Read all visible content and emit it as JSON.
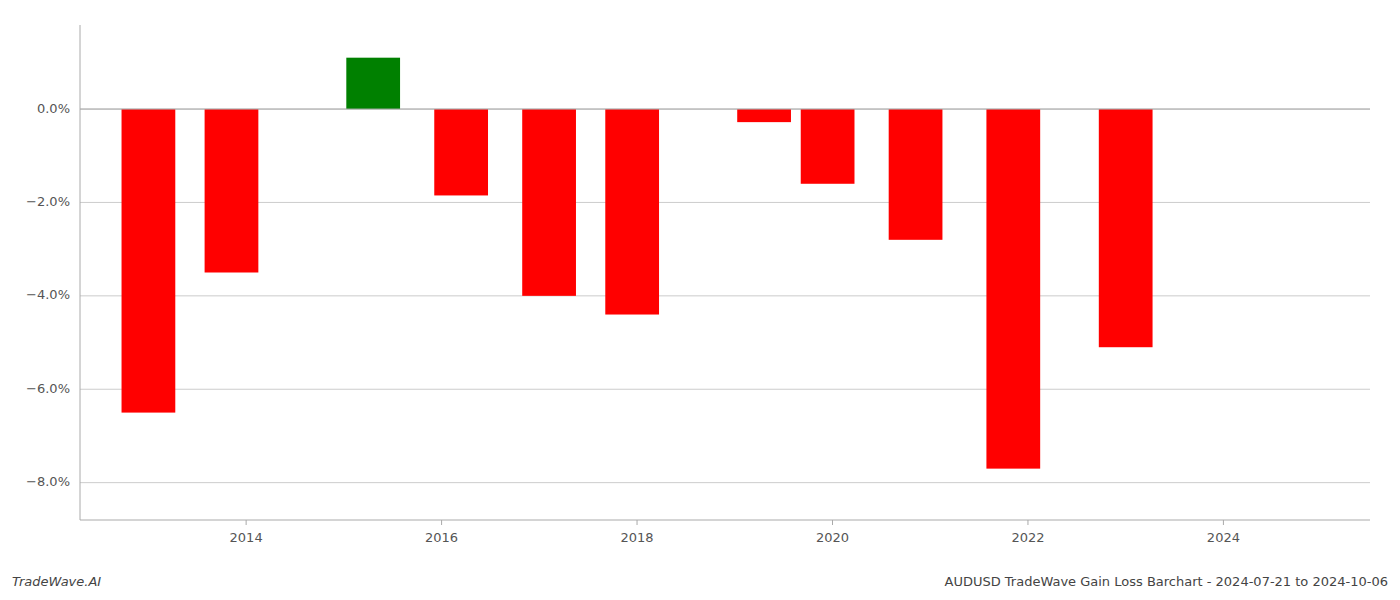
{
  "chart_data": {
    "type": "bar",
    "x": [
      2013.0,
      2013.85,
      2015.3,
      2016.2,
      2017.1,
      2017.95,
      2019.3,
      2019.95,
      2020.85,
      2021.85,
      2023.0
    ],
    "values": [
      -6.5,
      -3.5,
      1.1,
      -1.85,
      -4.0,
      -4.4,
      -0.28,
      -1.6,
      -2.8,
      -7.7,
      -5.1
    ],
    "colors": [
      "#ff0000",
      "#ff0000",
      "#008000",
      "#ff0000",
      "#ff0000",
      "#ff0000",
      "#ff0000",
      "#ff0000",
      "#ff0000",
      "#ff0000",
      "#ff0000"
    ],
    "ylim": [
      -8.8,
      1.8
    ],
    "yticks": [
      {
        "value": 0.0,
        "label": "0.0%"
      },
      {
        "value": -2.0,
        "label": "−2.0%"
      },
      {
        "value": -4.0,
        "label": "−4.0%"
      },
      {
        "value": -6.0,
        "label": "−6.0%"
      },
      {
        "value": -8.0,
        "label": "−8.0%"
      }
    ],
    "xlim": [
      2012.3,
      2025.5
    ],
    "xticks": [
      2014,
      2016,
      2018,
      2020,
      2022,
      2024
    ],
    "grid": true,
    "annotations": [
      "TradeWave.AI",
      "AUDUSD TradeWave Gain Loss Barchart - 2024-07-21 to 2024-10-06"
    ]
  }
}
